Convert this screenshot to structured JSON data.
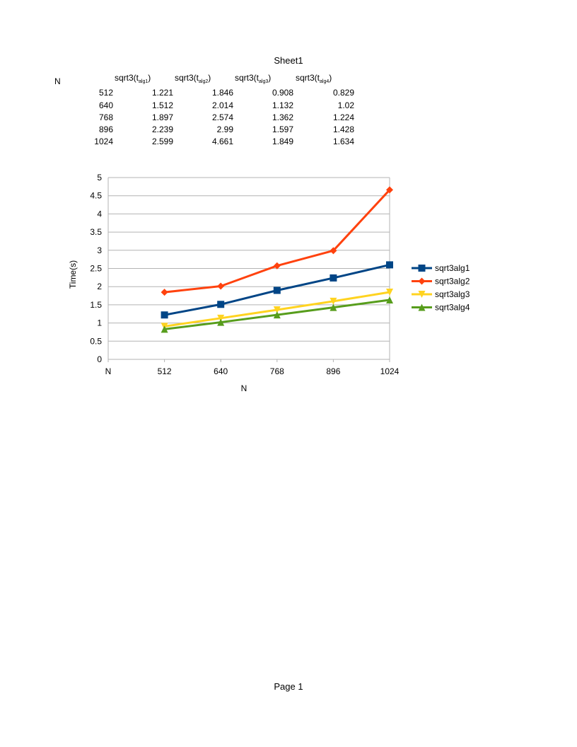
{
  "page": {
    "sheet_title": "Sheet1",
    "footer": "Page 1"
  },
  "table": {
    "row_header": "N",
    "columns": [
      {
        "prefix": "sqrt3(t",
        "sub": "alg1",
        "suffix": ")"
      },
      {
        "prefix": "sqrt3(t",
        "sub": "alg2",
        "suffix": ")"
      },
      {
        "prefix": "sqrt3(t",
        "sub": "alg3",
        "suffix": ")"
      },
      {
        "prefix": "sqrt3(t",
        "sub": "alg4",
        "suffix": ")"
      }
    ],
    "rows": [
      {
        "n": "512",
        "values": [
          "1.221",
          "1.846",
          "0.908",
          "0.829"
        ]
      },
      {
        "n": "640",
        "values": [
          "1.512",
          "2.014",
          "1.132",
          "1.02"
        ]
      },
      {
        "n": "768",
        "values": [
          "1.897",
          "2.574",
          "1.362",
          "1.224"
        ]
      },
      {
        "n": "896",
        "values": [
          "2.239",
          "2.99",
          "1.597",
          "1.428"
        ]
      },
      {
        "n": "1024",
        "values": [
          "2.599",
          "4.661",
          "1.849",
          "1.634"
        ]
      }
    ]
  },
  "chart_data": {
    "type": "line",
    "categories": [
      "N",
      "512",
      "640",
      "768",
      "896",
      "1024"
    ],
    "series": [
      {
        "name": "sqrt3alg1",
        "color": "#004586",
        "marker": "square",
        "values": [
          null,
          1.221,
          1.512,
          1.897,
          2.239,
          2.599
        ]
      },
      {
        "name": "sqrt3alg2",
        "color": "#ff420e",
        "marker": "diamond",
        "values": [
          null,
          1.846,
          2.014,
          2.574,
          2.99,
          4.661
        ]
      },
      {
        "name": "sqrt3alg3",
        "color": "#ffd320",
        "marker": "triangle-down",
        "values": [
          null,
          0.908,
          1.132,
          1.362,
          1.597,
          1.849
        ]
      },
      {
        "name": "sqrt3alg4",
        "color": "#579d1c",
        "marker": "triangle-up",
        "values": [
          null,
          0.829,
          1.02,
          1.224,
          1.428,
          1.634
        ]
      }
    ],
    "xlabel": "N",
    "ylabel": "Time(s)",
    "ylim": [
      0,
      5
    ],
    "yticks": [
      "0",
      "0.5",
      "1",
      "1.5",
      "2",
      "2.5",
      "3",
      "3.5",
      "4",
      "4.5",
      "5"
    ],
    "grid": true,
    "legend": "right"
  }
}
